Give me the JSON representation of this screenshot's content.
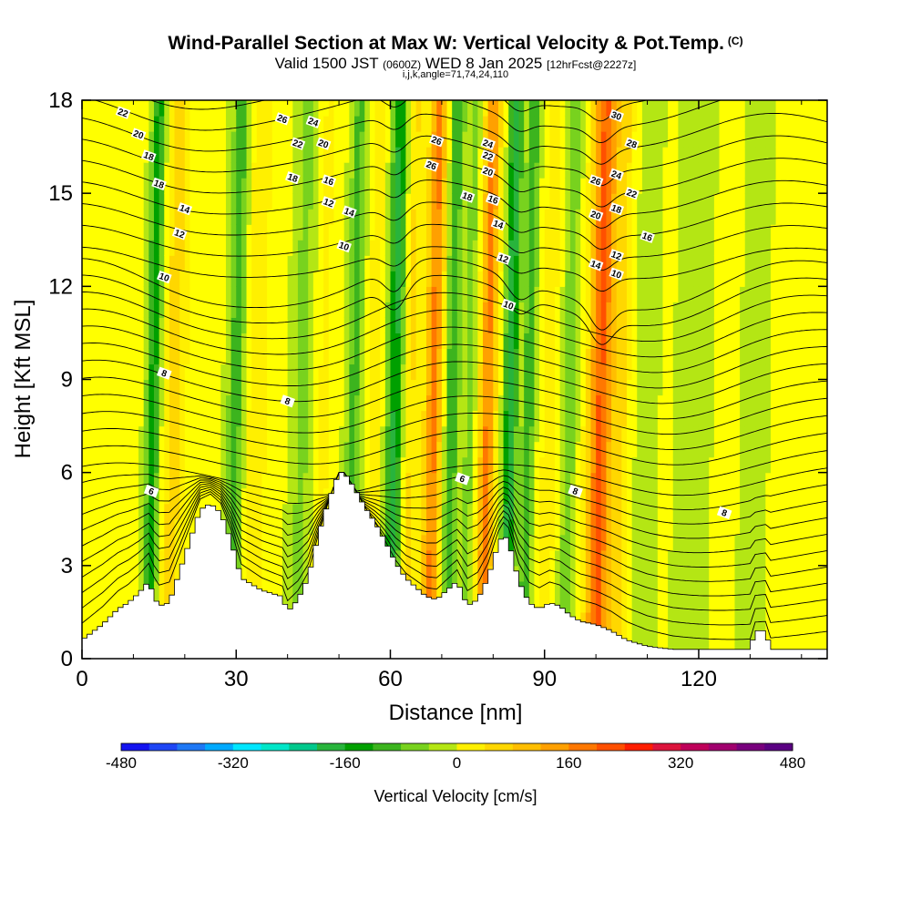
{
  "title": {
    "main": "Wind-Parallel Section at Max W: Vertical Velocity & Pot.Temp.",
    "copyright": "(C)",
    "valid_prefix": "Valid 1500 JST",
    "valid_utc": "(0600Z)",
    "valid_date": "WED 8 Jan 2025",
    "forecast": "[12hrFcst@2227z]",
    "params": "i,j,k,angle=71,74,24,110"
  },
  "colors": {
    "w_bands": [
      "#1414f0",
      "#1e46f5",
      "#1e78f5",
      "#00aaff",
      "#00e6ff",
      "#00e6c8",
      "#00c88c",
      "#28b43c",
      "#00a000",
      "#3cb41e",
      "#78d21e",
      "#b4e614",
      "#ffff00",
      "#fff000",
      "#ffd700",
      "#ffbe00",
      "#ffa000",
      "#ff7800",
      "#ff5000",
      "#ff1e00",
      "#dc143c",
      "#be005a",
      "#a0006e",
      "#78007d",
      "#5a0082"
    ],
    "terrain": "#ffffff",
    "contour": "#000000"
  },
  "chart_data": {
    "type": "heatmap",
    "xlabel": "Distance [nm]",
    "ylabel": "Height [Kft MSL]",
    "xlim": [
      0,
      145
    ],
    "ylim": [
      0,
      18
    ],
    "x_ticks": [
      0,
      30,
      60,
      90,
      120
    ],
    "y_ticks": [
      0,
      3,
      6,
      9,
      12,
      15,
      18
    ],
    "colorbar": {
      "label": "Vertical Velocity [cm/s]",
      "range": [
        -480,
        480
      ],
      "step": 40,
      "tick_values": [
        -480,
        -320,
        -160,
        0,
        160,
        320,
        480
      ]
    },
    "terrain_height": [
      [
        0,
        0.6
      ],
      [
        4,
        1.1
      ],
      [
        7,
        1.6
      ],
      [
        9,
        1.8
      ],
      [
        11,
        2.1
      ],
      [
        13,
        2.5
      ],
      [
        14,
        2.0
      ],
      [
        15,
        1.7
      ],
      [
        17,
        1.8
      ],
      [
        19,
        2.8
      ],
      [
        21,
        3.8
      ],
      [
        23,
        4.8
      ],
      [
        25,
        5.0
      ],
      [
        27,
        4.7
      ],
      [
        29,
        3.8
      ],
      [
        31,
        2.6
      ],
      [
        33,
        2.4
      ],
      [
        35,
        2.2
      ],
      [
        37,
        2.1
      ],
      [
        39,
        2.0
      ],
      [
        40,
        1.5
      ],
      [
        42,
        1.9
      ],
      [
        44,
        2.6
      ],
      [
        46,
        4.0
      ],
      [
        48,
        5.1
      ],
      [
        50,
        6.0
      ],
      [
        51,
        6.0
      ],
      [
        53,
        5.5
      ],
      [
        55,
        4.9
      ],
      [
        57,
        4.4
      ],
      [
        59,
        3.8
      ],
      [
        61,
        3.1
      ],
      [
        63,
        2.6
      ],
      [
        65,
        2.3
      ],
      [
        67,
        2.0
      ],
      [
        69,
        1.9
      ],
      [
        71,
        2.2
      ],
      [
        73,
        2.5
      ],
      [
        74,
        2.1
      ],
      [
        75,
        1.7
      ],
      [
        77,
        1.9
      ],
      [
        79,
        2.6
      ],
      [
        81,
        3.7
      ],
      [
        82,
        4.0
      ],
      [
        83,
        3.8
      ],
      [
        85,
        2.5
      ],
      [
        87,
        1.8
      ],
      [
        89,
        1.6
      ],
      [
        91,
        1.8
      ],
      [
        93,
        1.7
      ],
      [
        95,
        1.4
      ],
      [
        97,
        1.2
      ],
      [
        100,
        1.1
      ],
      [
        103,
        0.9
      ],
      [
        106,
        0.6
      ],
      [
        110,
        0.4
      ],
      [
        115,
        0.3
      ],
      [
        125,
        0.3
      ],
      [
        130,
        0.3
      ],
      [
        131,
        0.9
      ],
      [
        133,
        0.9
      ],
      [
        134,
        0.3
      ],
      [
        145,
        0.3
      ]
    ],
    "theta_labels": [
      {
        "x": 8,
        "y": 17.6,
        "label": "22"
      },
      {
        "x": 11,
        "y": 16.9,
        "label": "20"
      },
      {
        "x": 13,
        "y": 16.2,
        "label": "18"
      },
      {
        "x": 15,
        "y": 15.3,
        "label": "18"
      },
      {
        "x": 20,
        "y": 14.5,
        "label": "14"
      },
      {
        "x": 19,
        "y": 13.7,
        "label": "12"
      },
      {
        "x": 16,
        "y": 12.3,
        "label": "10"
      },
      {
        "x": 16,
        "y": 9.2,
        "label": "8"
      },
      {
        "x": 13.5,
        "y": 5.4,
        "label": "6"
      },
      {
        "x": 39,
        "y": 17.4,
        "label": "26"
      },
      {
        "x": 45,
        "y": 17.3,
        "label": "24"
      },
      {
        "x": 42,
        "y": 16.6,
        "label": "22"
      },
      {
        "x": 47,
        "y": 16.6,
        "label": "20"
      },
      {
        "x": 41,
        "y": 15.5,
        "label": "18"
      },
      {
        "x": 48,
        "y": 15.4,
        "label": "16"
      },
      {
        "x": 48,
        "y": 14.7,
        "label": "12"
      },
      {
        "x": 52,
        "y": 14.4,
        "label": "14"
      },
      {
        "x": 51,
        "y": 13.3,
        "label": "10"
      },
      {
        "x": 40,
        "y": 8.3,
        "label": "8"
      },
      {
        "x": 69,
        "y": 16.7,
        "label": "26"
      },
      {
        "x": 68,
        "y": 15.9,
        "label": "26"
      },
      {
        "x": 79,
        "y": 16.6,
        "label": "24"
      },
      {
        "x": 79,
        "y": 16.2,
        "label": "22"
      },
      {
        "x": 79,
        "y": 15.7,
        "label": "20"
      },
      {
        "x": 75,
        "y": 14.9,
        "label": "18"
      },
      {
        "x": 80,
        "y": 14.8,
        "label": "16"
      },
      {
        "x": 81,
        "y": 14.0,
        "label": "14"
      },
      {
        "x": 82,
        "y": 12.9,
        "label": "12"
      },
      {
        "x": 83,
        "y": 11.4,
        "label": "10"
      },
      {
        "x": 74,
        "y": 5.8,
        "label": "6"
      },
      {
        "x": 104,
        "y": 17.5,
        "label": "30"
      },
      {
        "x": 107,
        "y": 16.6,
        "label": "28"
      },
      {
        "x": 100,
        "y": 15.4,
        "label": "26"
      },
      {
        "x": 104,
        "y": 15.6,
        "label": "24"
      },
      {
        "x": 107,
        "y": 15.0,
        "label": "22"
      },
      {
        "x": 104,
        "y": 14.5,
        "label": "18"
      },
      {
        "x": 100,
        "y": 14.3,
        "label": "20"
      },
      {
        "x": 110,
        "y": 13.6,
        "label": "16"
      },
      {
        "x": 104,
        "y": 13.0,
        "label": "12"
      },
      {
        "x": 100,
        "y": 12.7,
        "label": "14"
      },
      {
        "x": 104,
        "y": 12.4,
        "label": "10"
      },
      {
        "x": 96,
        "y": 5.4,
        "label": "8"
      },
      {
        "x": 125,
        "y": 4.7,
        "label": "8"
      }
    ]
  }
}
